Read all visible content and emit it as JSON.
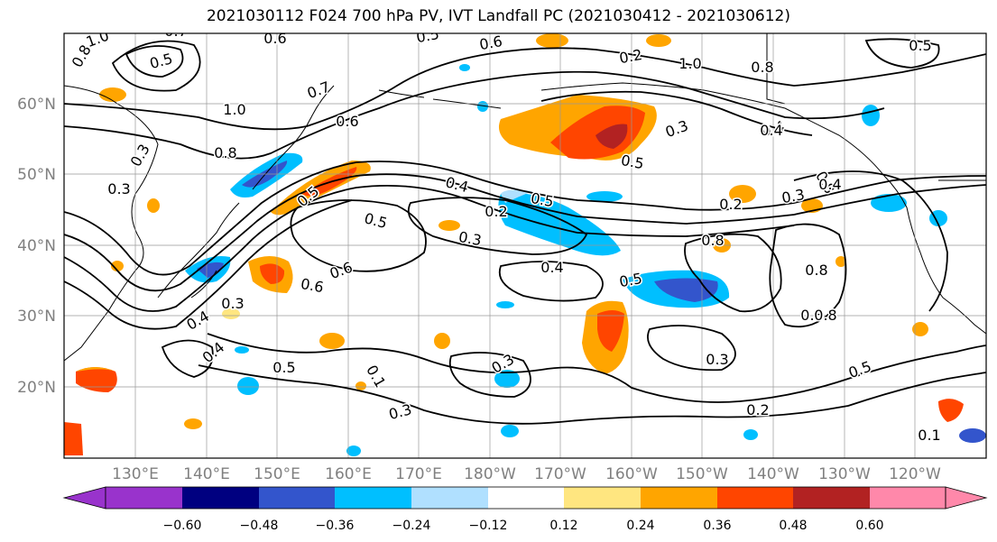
{
  "title": "2021030112 F024 700 hPa PV, IVT Landfall PC (2021030412 - 2021030612)",
  "lat_labels": [
    "60°N",
    "50°N",
    "40°N",
    "30°N",
    "20°N"
  ],
  "lon_labels": [
    "130°E",
    "140°E",
    "150°E",
    "160°E",
    "170°E",
    "180°W",
    "170°W",
    "160°W",
    "150°W",
    "140°W",
    "130°W",
    "120°W"
  ],
  "contour_labels": [
    "1.0",
    "0.7",
    "0.5",
    "0.8",
    "0.6",
    "0.5",
    "0.6",
    "0.2",
    "1.0",
    "0.8",
    "0.7",
    "1.0",
    "0.8",
    "0.4",
    "0.3",
    "0.3",
    "0.5",
    "0.5",
    "0.4",
    "0.2",
    "0.3",
    "0.5",
    "0.6",
    "0.2",
    "0.8",
    "0.4",
    "0.5",
    "0.6",
    "0.4",
    "0.3",
    "0.4",
    "0.5",
    "0.3",
    "0.3",
    "0.1",
    "0.8",
    "0.8",
    "0.5",
    "0.3",
    "0.2",
    "0.1",
    "0.8",
    "0.3",
    "0.3",
    "0.5",
    "0.4",
    "0.5",
    "0.8",
    "0.6",
    "0.4"
  ],
  "colorbar": {
    "ticks": [
      "−0.60",
      "−0.48",
      "−0.36",
      "−0.24",
      "−0.12",
      "0.12",
      "0.24",
      "0.36",
      "0.48",
      "0.60"
    ],
    "colors": [
      "#9933cc",
      "#000080",
      "#3355cc",
      "#00bfff",
      "#b0e0ff",
      "#ffffff",
      "#ffe680",
      "#ffa500",
      "#ff4500",
      "#b22222",
      "#ff88aa"
    ]
  },
  "shading_colors": {
    "neg_light": "#b0e0ff",
    "neg_mid": "#00bfff",
    "neg_strong": "#3355cc",
    "neg_max": "#000080",
    "pos_light": "#ffe680",
    "pos_mid": "#ffa500",
    "pos_strong": "#ff4500",
    "pos_max": "#b22222"
  }
}
